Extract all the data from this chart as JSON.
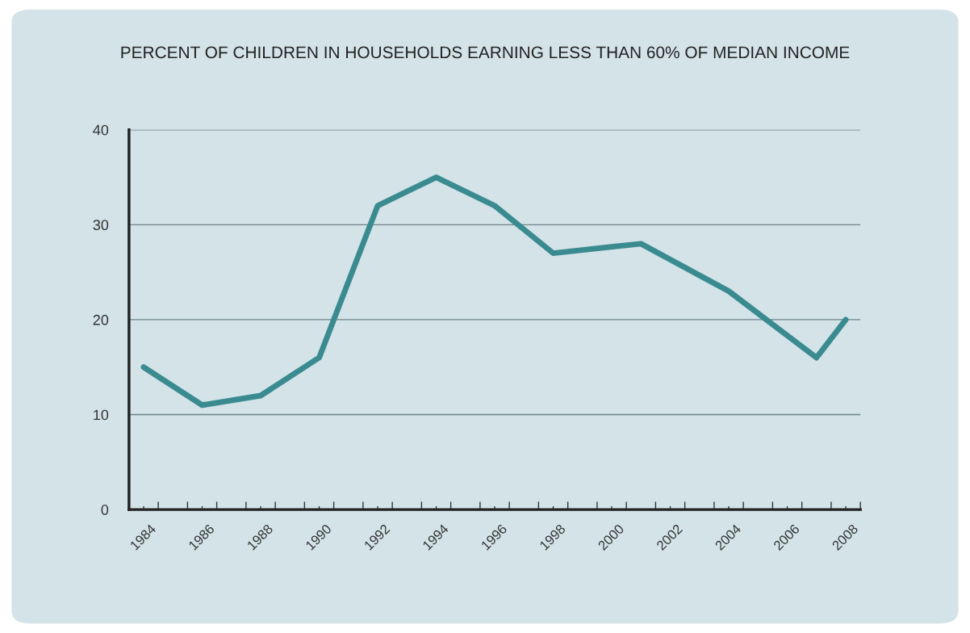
{
  "chart_data": {
    "type": "line",
    "title": "PERCENT OF CHILDREN IN HOUSEHOLDS EARNING LESS THAN 60% OF MEDIAN INCOME",
    "x": [
      1984,
      1986,
      1988,
      1990,
      1992,
      1994,
      1996,
      1998,
      2001,
      2004,
      2007,
      2008
    ],
    "series": [
      {
        "color": "#3a8b90",
        "values": [
          15,
          11,
          12,
          16,
          32,
          35,
          32,
          27,
          28,
          23,
          16,
          20
        ]
      }
    ],
    "xlim": [
      1983.5,
      2008.5
    ],
    "xticks": [
      1984,
      1986,
      1988,
      1990,
      1992,
      1994,
      1996,
      1998,
      2000,
      2002,
      2004,
      2006,
      2008,
      {
        "value": 1984.5,
        "label": null
      },
      {
        "value": 1985.5,
        "label": null
      },
      {
        "value": 1986.5,
        "label": null
      },
      {
        "value": 1987.5,
        "label": null
      },
      {
        "value": 1988.5,
        "label": null
      },
      {
        "value": 1989.5,
        "label": null
      },
      {
        "value": 1990.5,
        "label": null
      },
      {
        "value": 1991.5,
        "label": null
      },
      {
        "value": 1992.5,
        "label": null
      },
      {
        "value": 1993.5,
        "label": null
      },
      {
        "value": 1994.5,
        "label": null
      },
      {
        "value": 1995.5,
        "label": null
      },
      {
        "value": 1996.5,
        "label": null
      },
      {
        "value": 1997.5,
        "label": null
      },
      {
        "value": 1998.5,
        "label": null
      },
      {
        "value": 1999.5,
        "label": null
      },
      {
        "value": 2000.5,
        "label": null
      },
      {
        "value": 2001.5,
        "label": null
      },
      {
        "value": 2002.5,
        "label": null
      },
      {
        "value": 2003.5,
        "label": null
      },
      {
        "value": 2004.5,
        "label": null
      },
      {
        "value": 2005.5,
        "label": null
      },
      {
        "value": 2006.5,
        "label": null
      },
      {
        "value": 2007.5,
        "label": null
      },
      {
        "value": 2008.5,
        "label": null
      }
    ],
    "ylim": [
      0,
      40
    ],
    "yticks": [
      0,
      10,
      20,
      30,
      40
    ],
    "grid": "y",
    "marker": "none",
    "line_style": "solid"
  }
}
